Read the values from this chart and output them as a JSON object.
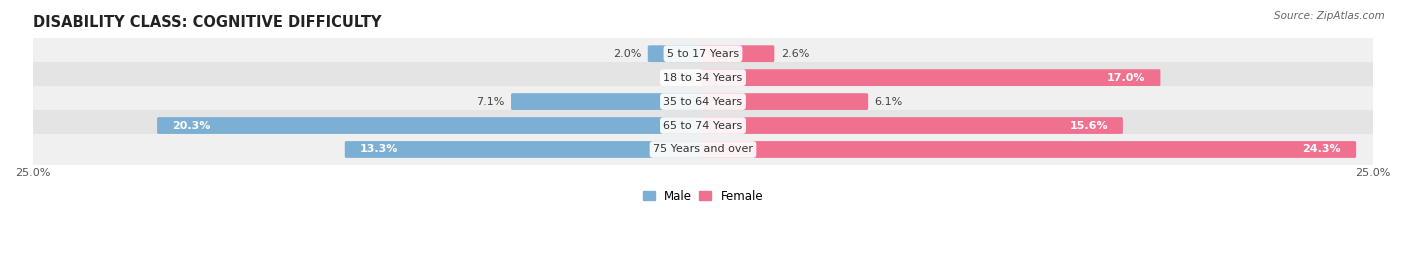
{
  "title": "DISABILITY CLASS: COGNITIVE DIFFICULTY",
  "source": "Source: ZipAtlas.com",
  "categories": [
    "5 to 17 Years",
    "18 to 34 Years",
    "35 to 64 Years",
    "65 to 74 Years",
    "75 Years and over"
  ],
  "male_values": [
    2.0,
    0.0,
    7.1,
    20.3,
    13.3
  ],
  "female_values": [
    2.6,
    17.0,
    6.1,
    15.6,
    24.3
  ],
  "male_color": "#7bafd4",
  "female_color": "#f07090",
  "row_bg_colors": [
    "#f0f0f0",
    "#e4e4e4"
  ],
  "max_value": 25.0,
  "legend_male": "Male",
  "legend_female": "Female",
  "title_fontsize": 10.5,
  "label_fontsize": 8,
  "category_fontsize": 8,
  "axis_label_fontsize": 8
}
